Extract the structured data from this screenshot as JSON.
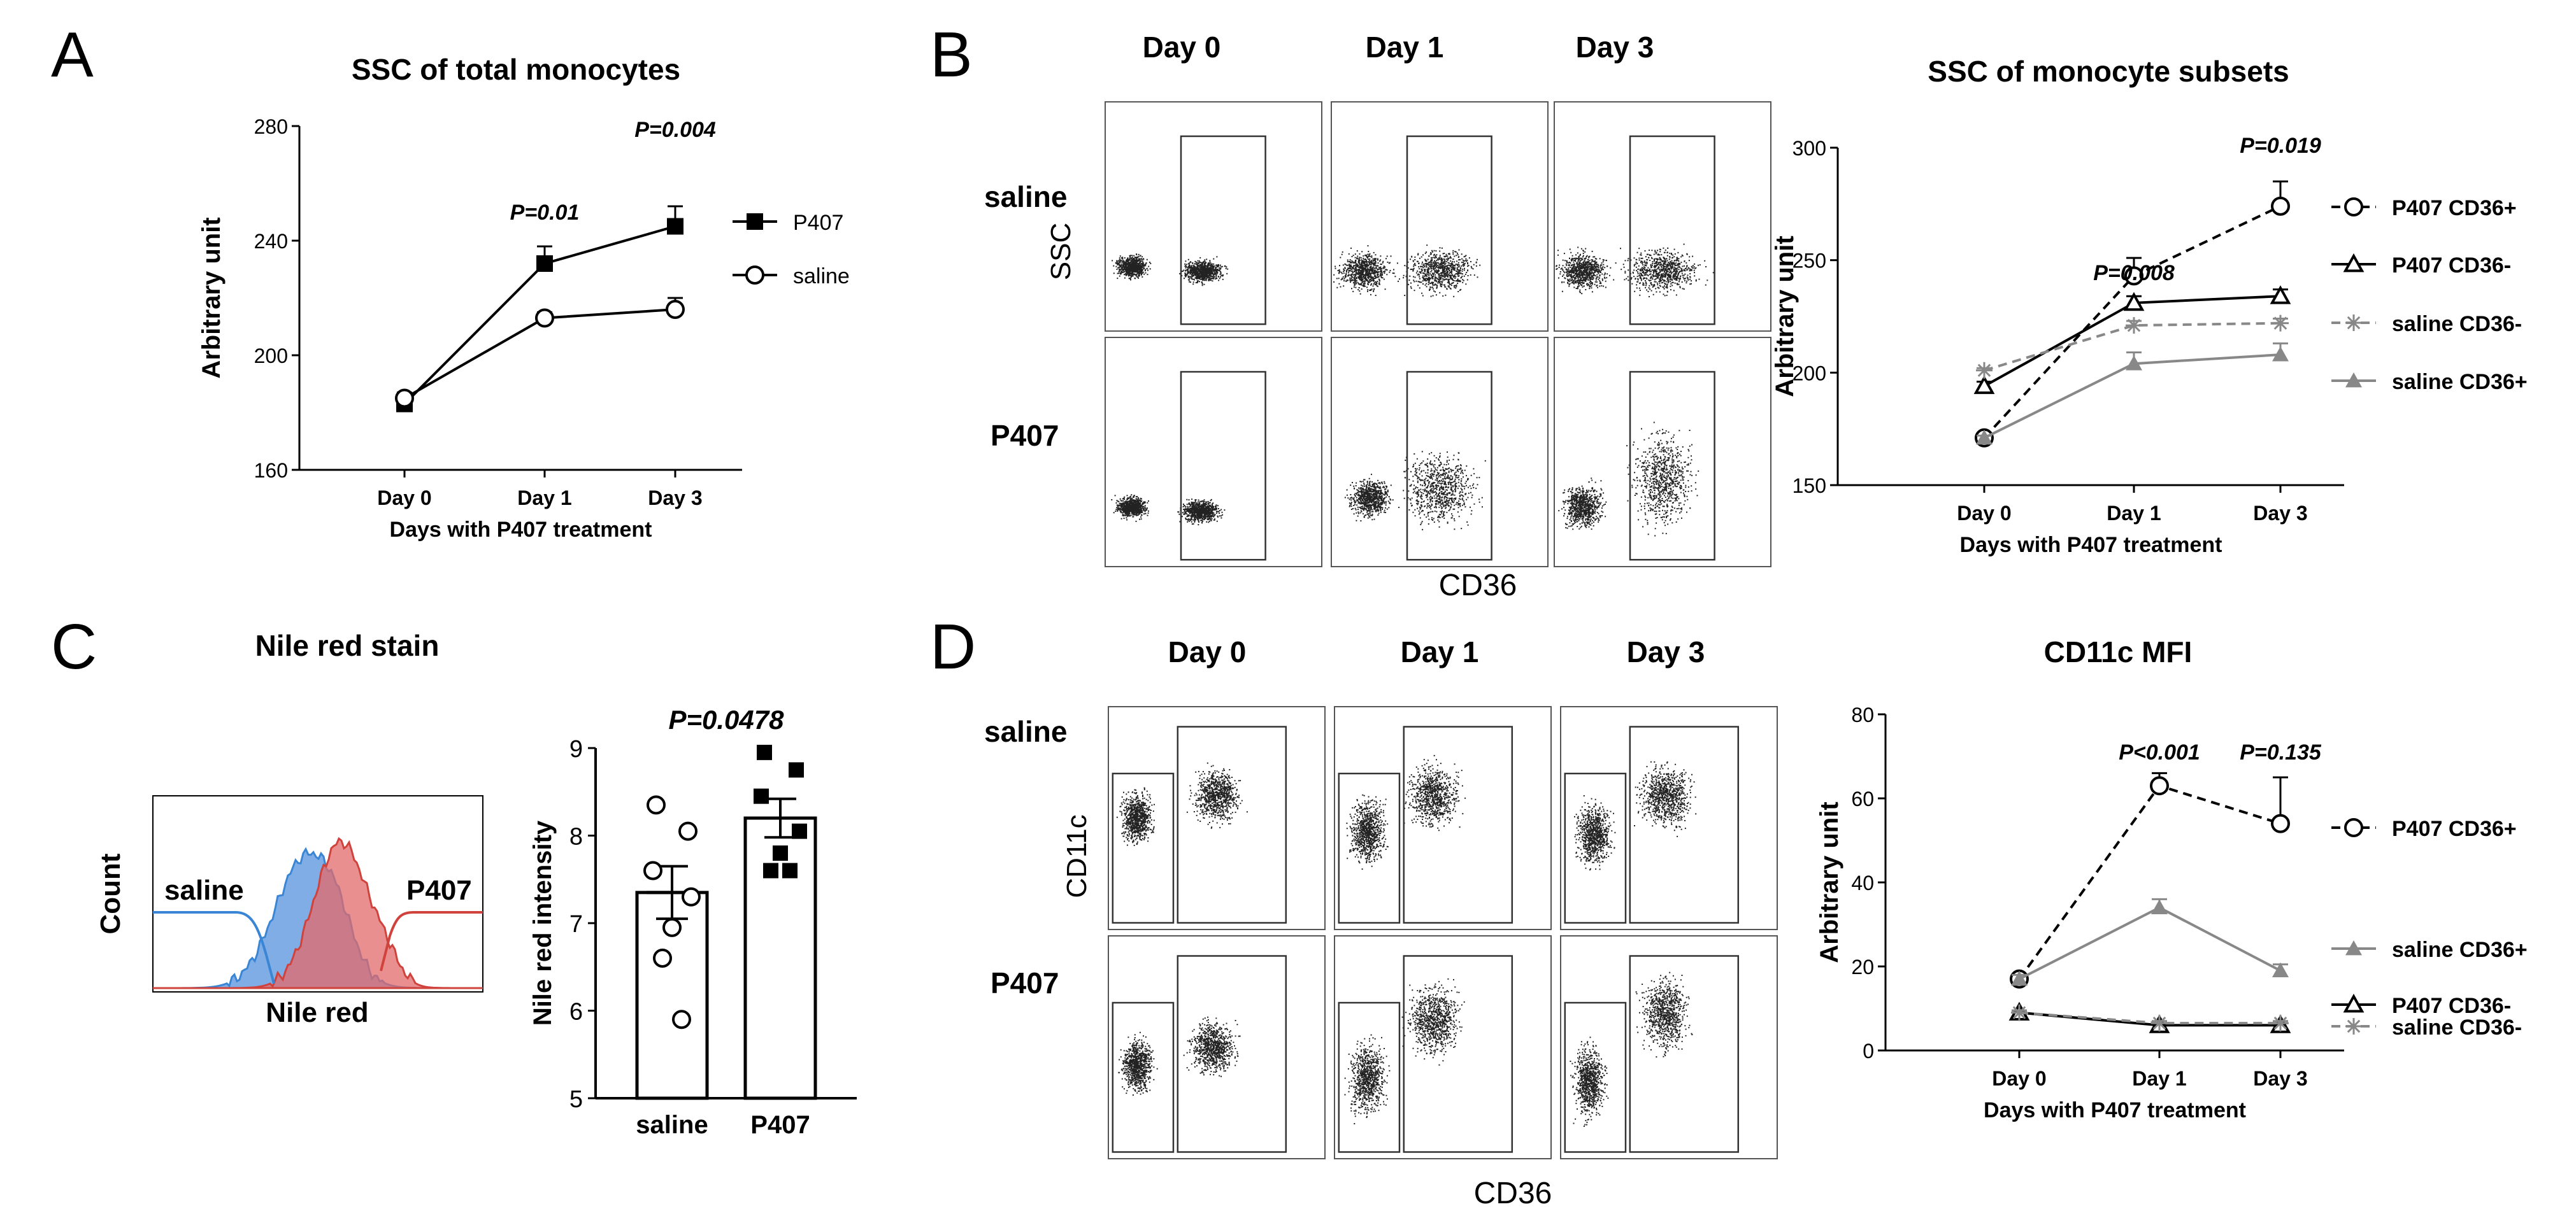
{
  "colors": {
    "black": "#000000",
    "gray": "#888888",
    "blue": "#3a86d4",
    "red": "#d0423c",
    "blue_fill": "#6a9fe0",
    "red_fill": "#e36a6a",
    "overlap": "#9b5560"
  },
  "panels": {
    "A": {
      "letter": "A"
    },
    "B": {
      "letter": "B",
      "cols": [
        "Day 0",
        "Day 1",
        "Day 3"
      ],
      "rows": [
        "saline",
        "P407"
      ],
      "ylabel": "SSC",
      "xlabel": "CD36"
    },
    "C": {
      "letter": "C",
      "title": "Nile red stain",
      "hist_labels": [
        "saline",
        "P407"
      ],
      "hist_ylabel": "Count",
      "hist_xlabel": "Nile red"
    },
    "D": {
      "letter": "D",
      "cols": [
        "Day 0",
        "Day 1",
        "Day 3"
      ],
      "rows": [
        "saline",
        "P407"
      ],
      "ylabel": "CD11c",
      "xlabel": "CD36"
    }
  },
  "chart_data": [
    {
      "id": "A",
      "type": "line",
      "title": "SSC of total monocytes",
      "xlabel": "Days with P407 treatment",
      "ylabel": "Arbitrary unit",
      "categories": [
        "Day 0",
        "Day 1",
        "Day 3"
      ],
      "ylim": [
        160,
        280
      ],
      "yticks": [
        160,
        200,
        240,
        280
      ],
      "series": [
        {
          "name": "P407",
          "marker": "square-filled",
          "dash": "solid",
          "color": "#000000",
          "values": [
            183,
            232,
            245
          ],
          "errors": [
            2,
            6,
            7
          ]
        },
        {
          "name": "saline",
          "marker": "circle-open",
          "dash": "solid",
          "color": "#000000",
          "values": [
            185,
            213,
            216
          ],
          "errors": [
            2,
            2,
            4
          ]
        }
      ],
      "annotations": [
        {
          "text": "P=0.01",
          "at": 1
        },
        {
          "text": "P=0.004",
          "at": 2
        }
      ]
    },
    {
      "id": "B",
      "type": "line",
      "title": "SSC of monocyte subsets",
      "xlabel": "Days with P407 treatment",
      "ylabel": "Arbitrary unit",
      "categories": [
        "Day 0",
        "Day 1",
        "Day 3"
      ],
      "ylim": [
        150,
        300
      ],
      "yticks": [
        150,
        200,
        250,
        300
      ],
      "series": [
        {
          "name": "P407  CD36+",
          "marker": "circle-open",
          "dash": "dashed",
          "color": "#000000",
          "values": [
            171,
            243,
            274
          ],
          "errors": [
            1,
            8,
            11
          ]
        },
        {
          "name": "P407  CD36-",
          "marker": "triangle-open",
          "dash": "solid",
          "color": "#000000",
          "values": [
            194,
            231,
            234
          ],
          "errors": [
            2,
            3,
            3
          ]
        },
        {
          "name": "saline CD36-",
          "marker": "asterisk",
          "dash": "dashed",
          "color": "#888888",
          "values": [
            201,
            221,
            222
          ],
          "errors": [
            1,
            2,
            2
          ]
        },
        {
          "name": "saline CD36+",
          "marker": "triangle-filled",
          "dash": "solid",
          "color": "#888888",
          "values": [
            171,
            204,
            208
          ],
          "errors": [
            1,
            5,
            5
          ]
        }
      ],
      "annotations": [
        {
          "text": "P=0.008",
          "at": 1
        },
        {
          "text": "P=0.019",
          "at": 2
        }
      ]
    },
    {
      "id": "C",
      "type": "bar",
      "title": "",
      "xlabel": "",
      "ylabel": "Nile red intensity",
      "categories": [
        "saline",
        "P407"
      ],
      "values": [
        7.35,
        8.2
      ],
      "errors": [
        0.3,
        0.22
      ],
      "ylim": [
        5,
        9
      ],
      "yticks": [
        5,
        6,
        7,
        8,
        9
      ],
      "points": [
        [
          8.35,
          8.05,
          7.6,
          7.3,
          6.95,
          6.6,
          5.9
        ],
        [
          8.95,
          8.75,
          8.45,
          8.05,
          7.8,
          7.6,
          7.6
        ]
      ],
      "annotations": [
        {
          "text": "P=0.0478"
        }
      ]
    },
    {
      "id": "D",
      "type": "line",
      "title": "CD11c MFI",
      "xlabel": "Days with P407 treatment",
      "ylabel": "Arbitrary unit",
      "categories": [
        "Day 0",
        "Day 1",
        "Day 3"
      ],
      "ylim": [
        0,
        80
      ],
      "yticks": [
        0,
        20,
        40,
        60,
        80
      ],
      "series": [
        {
          "name": "P407  CD36+",
          "marker": "circle-open",
          "dash": "dashed",
          "color": "#000000",
          "values": [
            17,
            63,
            54
          ],
          "errors": [
            1,
            3,
            11
          ]
        },
        {
          "name": "saline CD36+",
          "marker": "triangle-filled",
          "dash": "solid",
          "color": "#888888",
          "values": [
            17,
            34,
            19
          ],
          "errors": [
            1,
            2,
            1.5
          ]
        },
        {
          "name": "P407  CD36-",
          "marker": "triangle-open",
          "dash": "solid",
          "color": "#000000",
          "values": [
            9,
            6,
            6
          ],
          "errors": [
            0.5,
            0.5,
            0.5
          ]
        },
        {
          "name": "saline CD36-",
          "marker": "asterisk",
          "dash": "dashed",
          "color": "#888888",
          "values": [
            9,
            6.5,
            6.5
          ],
          "errors": [
            0.5,
            0.5,
            0.5
          ]
        }
      ],
      "annotations": [
        {
          "text": "P<0.001",
          "at": 1
        },
        {
          "text": "P=0.135",
          "at": 2
        }
      ]
    }
  ]
}
